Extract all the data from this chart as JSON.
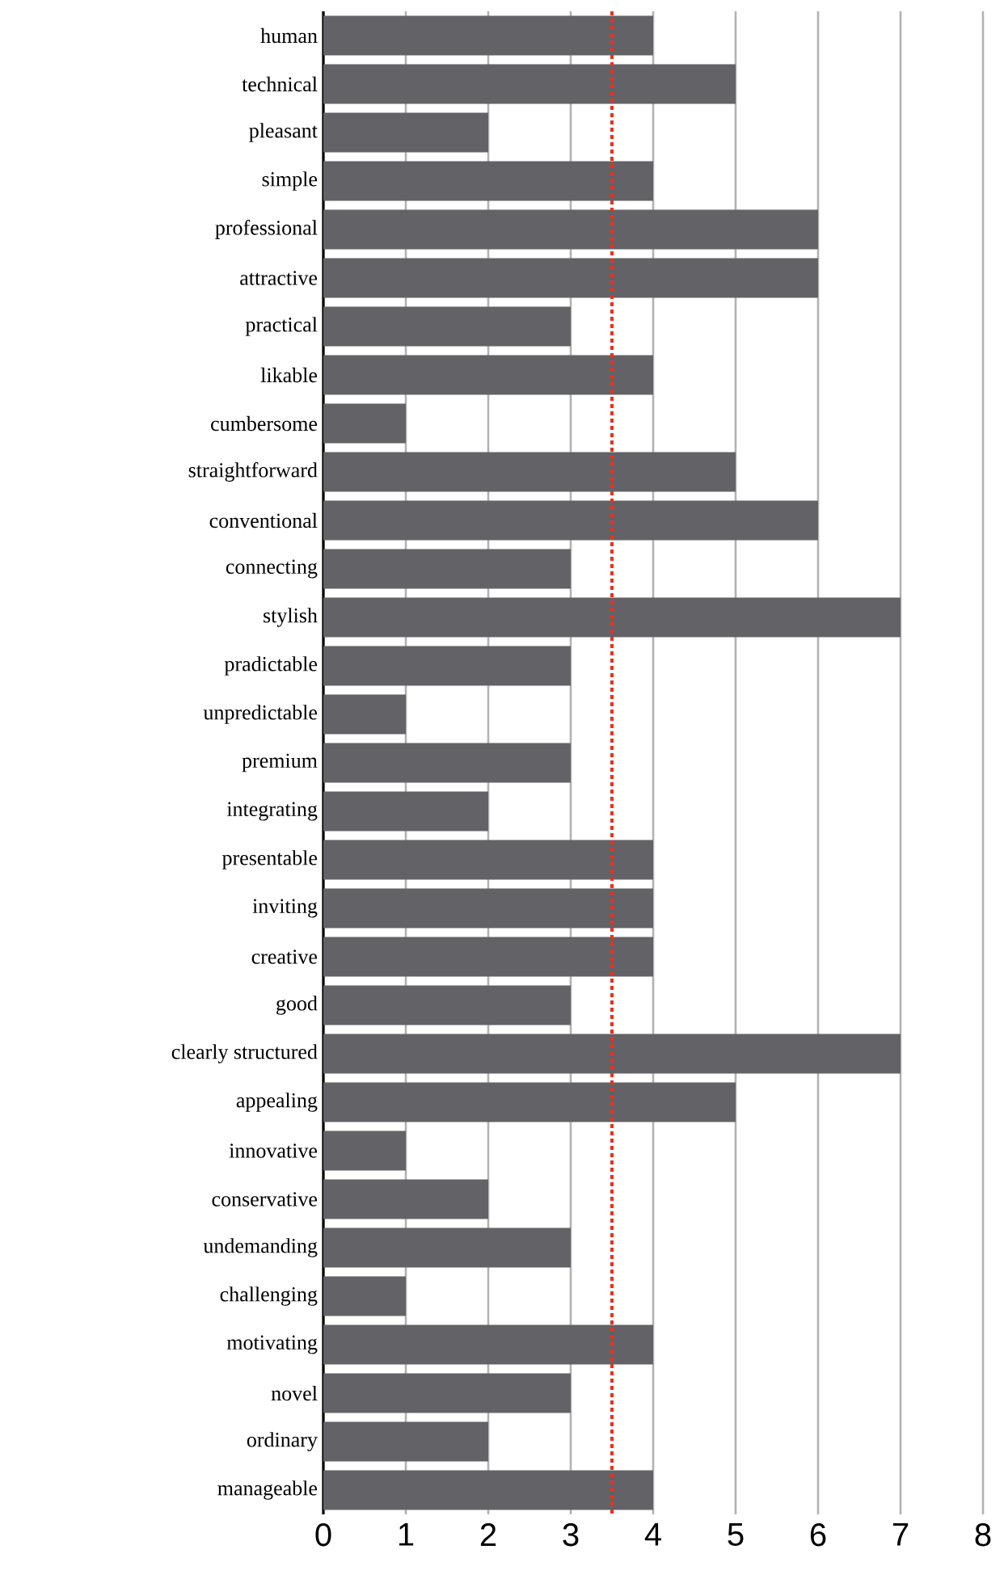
{
  "chart_data": {
    "type": "bar",
    "orientation": "horizontal",
    "color": "#636266",
    "categories": [
      "human",
      "technical",
      "pleasant",
      "simple",
      "professional",
      "attractive",
      "practical",
      "likable",
      "cumbersome",
      "straightforward",
      "conventional",
      "connecting",
      "stylish",
      "pradictable",
      "unpredictable",
      "premium",
      "integrating",
      "presentable",
      "inviting",
      "creative",
      "good",
      "clearly structured",
      "appealing",
      "innovative",
      "conservative",
      "undemanding",
      "challenging",
      "motivating",
      "novel",
      "ordinary",
      "manageable"
    ],
    "values": [
      4,
      5,
      2,
      4,
      6,
      6,
      3,
      4,
      1,
      5,
      6,
      3,
      7,
      3,
      1,
      3,
      2,
      4,
      4,
      4,
      3,
      7,
      5,
      1,
      2,
      3,
      1,
      4,
      3,
      2,
      4
    ],
    "xlim": [
      0,
      8
    ],
    "xticks": [
      0,
      1,
      2,
      3,
      4,
      5,
      6,
      7,
      8
    ],
    "grid": "x",
    "ref_lines": [
      {
        "axis": "x",
        "value": 3.5,
        "color": "#e8321e",
        "line_style": "dotted"
      }
    ]
  }
}
